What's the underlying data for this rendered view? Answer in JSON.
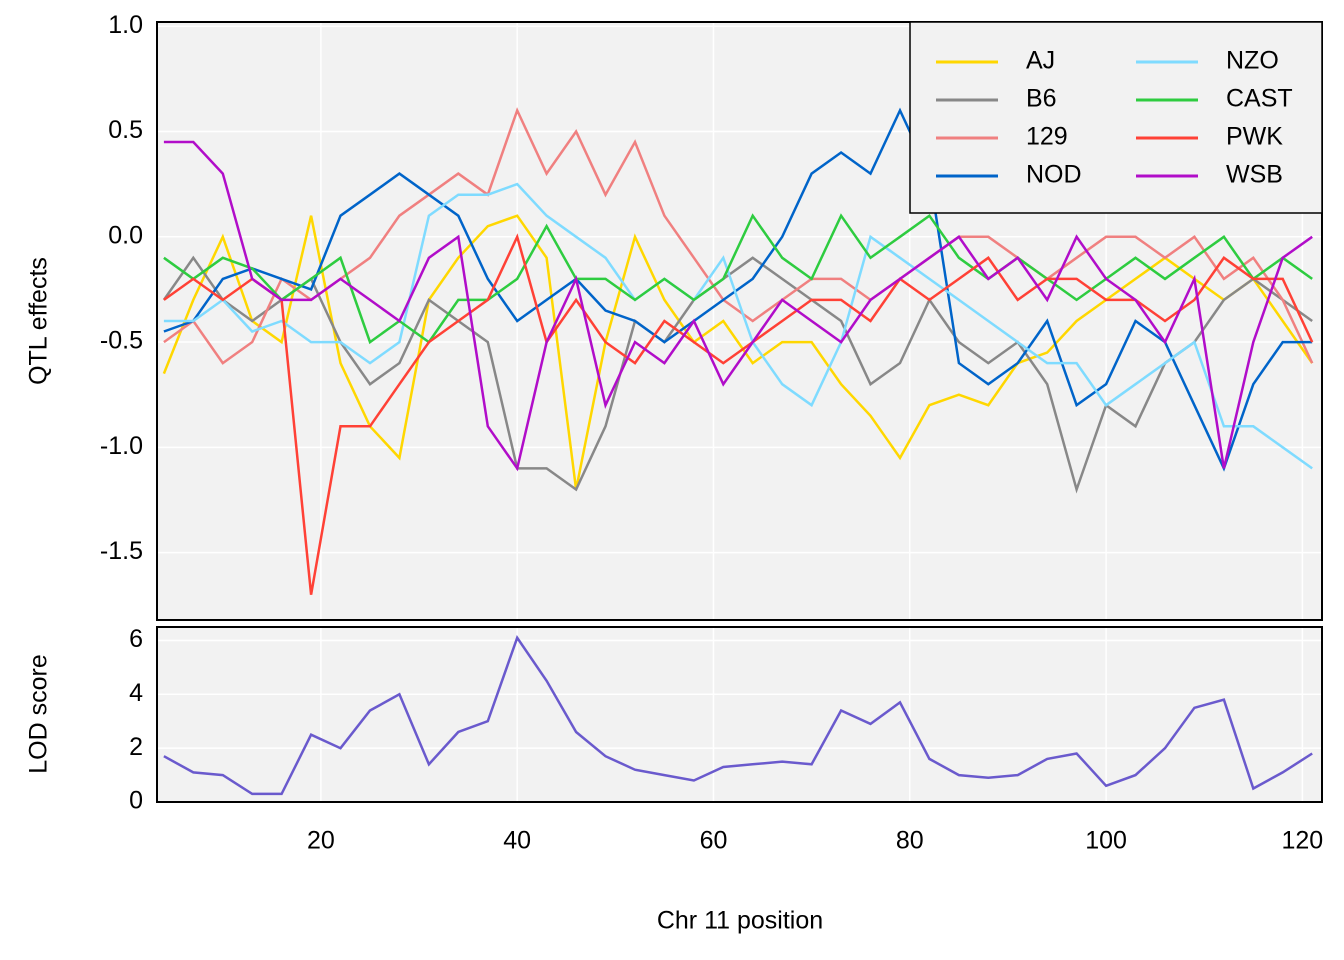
{
  "chart_data": [
    {
      "type": "line",
      "ylabel": "QTL effects",
      "x": [
        4,
        7,
        10,
        13,
        16,
        19,
        22,
        25,
        28,
        31,
        34,
        37,
        40,
        43,
        46,
        49,
        52,
        55,
        58,
        61,
        64,
        67,
        70,
        73,
        76,
        79,
        82,
        85,
        88,
        91,
        94,
        97,
        100,
        103,
        106,
        109,
        112,
        115,
        118,
        121
      ],
      "xlim": [
        3.3,
        122
      ],
      "ylim": [
        -1.82,
        1.02
      ],
      "yticks": [
        -1.5,
        {
          "value": -1,
          "label": "-1.0"
        },
        -0.5,
        {
          "value": 0,
          "label": "0.0"
        },
        0.5,
        {
          "value": 1,
          "label": "1.0"
        }
      ],
      "grid": true,
      "legend": "top-right",
      "series": [
        {
          "name": "AJ",
          "color": "#FFD700",
          "values": [
            -0.65,
            -0.3,
            0.0,
            -0.4,
            -0.5,
            0.1,
            -0.6,
            -0.9,
            -1.05,
            -0.3,
            -0.1,
            0.05,
            0.1,
            -0.1,
            -1.2,
            -0.5,
            0.0,
            -0.3,
            -0.5,
            -0.4,
            -0.6,
            -0.5,
            -0.5,
            -0.7,
            -0.85,
            -1.05,
            -0.8,
            -0.75,
            -0.8,
            -0.6,
            -0.55,
            -0.4,
            -0.3,
            -0.2,
            -0.1,
            -0.2,
            -0.3,
            -0.2,
            -0.4,
            -0.6
          ]
        },
        {
          "name": "B6",
          "color": "#888888",
          "values": [
            -0.3,
            -0.1,
            -0.3,
            -0.4,
            -0.3,
            -0.2,
            -0.5,
            -0.7,
            -0.6,
            -0.3,
            -0.4,
            -0.5,
            -1.1,
            -1.1,
            -1.2,
            -0.9,
            -0.4,
            -0.5,
            -0.3,
            -0.2,
            -0.1,
            -0.2,
            -0.3,
            -0.4,
            -0.7,
            -0.6,
            -0.3,
            -0.5,
            -0.6,
            -0.5,
            -0.7,
            -1.2,
            -0.8,
            -0.9,
            -0.6,
            -0.5,
            -0.3,
            -0.2,
            -0.3,
            -0.4
          ]
        },
        {
          "name": "129",
          "color": "#F08080",
          "values": [
            -0.5,
            -0.4,
            -0.6,
            -0.5,
            -0.2,
            -0.3,
            -0.2,
            -0.1,
            0.1,
            0.2,
            0.3,
            0.2,
            0.6,
            0.3,
            0.5,
            0.2,
            0.45,
            0.1,
            -0.1,
            -0.3,
            -0.4,
            -0.3,
            -0.2,
            -0.2,
            -0.3,
            -0.2,
            -0.1,
            0.0,
            0.0,
            -0.1,
            -0.2,
            -0.1,
            0.0,
            0.0,
            -0.1,
            0.0,
            -0.2,
            -0.1,
            -0.3,
            -0.6
          ]
        },
        {
          "name": "NOD",
          "color": "#0064C9",
          "values": [
            -0.45,
            -0.4,
            -0.2,
            -0.15,
            -0.2,
            -0.25,
            0.1,
            0.2,
            0.3,
            0.2,
            0.1,
            -0.2,
            -0.4,
            -0.3,
            -0.2,
            -0.35,
            -0.4,
            -0.5,
            -0.4,
            -0.3,
            -0.2,
            0.0,
            0.3,
            0.4,
            0.3,
            0.6,
            0.3,
            -0.6,
            -0.7,
            -0.6,
            -0.4,
            -0.8,
            -0.7,
            -0.4,
            -0.5,
            -0.8,
            -1.1,
            -0.7,
            -0.5,
            -0.5
          ]
        },
        {
          "name": "NZO",
          "color": "#7FDBFF",
          "values": [
            -0.4,
            -0.4,
            -0.3,
            -0.45,
            -0.4,
            -0.5,
            -0.5,
            -0.6,
            -0.5,
            0.1,
            0.2,
            0.2,
            0.25,
            0.1,
            0.0,
            -0.1,
            -0.3,
            -0.2,
            -0.3,
            -0.1,
            -0.5,
            -0.7,
            -0.8,
            -0.5,
            0.0,
            -0.1,
            -0.2,
            -0.3,
            -0.4,
            -0.5,
            -0.6,
            -0.6,
            -0.8,
            -0.7,
            -0.6,
            -0.5,
            -0.9,
            -0.9,
            -1.0,
            -1.1
          ]
        },
        {
          "name": "CAST",
          "color": "#2ECC40",
          "values": [
            -0.1,
            -0.2,
            -0.1,
            -0.15,
            -0.3,
            -0.2,
            -0.1,
            -0.5,
            -0.4,
            -0.5,
            -0.3,
            -0.3,
            -0.2,
            0.05,
            -0.2,
            -0.2,
            -0.3,
            -0.2,
            -0.3,
            -0.2,
            0.1,
            -0.1,
            -0.2,
            0.1,
            -0.1,
            0.0,
            0.1,
            -0.1,
            -0.2,
            -0.1,
            -0.2,
            -0.3,
            -0.2,
            -0.1,
            -0.2,
            -0.1,
            0.0,
            -0.2,
            -0.1,
            -0.2
          ]
        },
        {
          "name": "PWK",
          "color": "#FF4136",
          "values": [
            -0.3,
            -0.2,
            -0.3,
            -0.2,
            -0.3,
            -1.7,
            -0.9,
            -0.9,
            -0.7,
            -0.5,
            -0.4,
            -0.3,
            0.0,
            -0.5,
            -0.3,
            -0.5,
            -0.6,
            -0.4,
            -0.5,
            -0.6,
            -0.5,
            -0.4,
            -0.3,
            -0.3,
            -0.4,
            -0.2,
            -0.3,
            -0.2,
            -0.1,
            -0.3,
            -0.2,
            -0.2,
            -0.3,
            -0.3,
            -0.4,
            -0.3,
            -0.1,
            -0.2,
            -0.2,
            -0.5
          ]
        },
        {
          "name": "WSB",
          "color": "#B10DC9",
          "values": [
            0.45,
            0.45,
            0.3,
            -0.2,
            -0.3,
            -0.3,
            -0.2,
            -0.3,
            -0.4,
            -0.1,
            0.0,
            -0.9,
            -1.1,
            -0.5,
            -0.2,
            -0.8,
            -0.5,
            -0.6,
            -0.4,
            -0.7,
            -0.5,
            -0.3,
            -0.4,
            -0.5,
            -0.3,
            -0.2,
            -0.1,
            0.0,
            -0.2,
            -0.1,
            -0.3,
            0.0,
            -0.2,
            -0.3,
            -0.5,
            -0.2,
            -1.1,
            -0.5,
            -0.1,
            0.0
          ]
        }
      ]
    },
    {
      "type": "line",
      "ylabel": "LOD score",
      "xlabel": "Chr 11 position",
      "color": "#6A5ACD",
      "x": [
        4,
        7,
        10,
        13,
        16,
        19,
        22,
        25,
        28,
        31,
        34,
        37,
        40,
        43,
        46,
        49,
        52,
        55,
        58,
        61,
        64,
        67,
        70,
        73,
        76,
        79,
        82,
        85,
        88,
        91,
        94,
        97,
        100,
        103,
        106,
        109,
        112,
        115,
        118,
        121
      ],
      "values": [
        1.7,
        1.1,
        1.0,
        0.3,
        0.3,
        2.5,
        2.0,
        3.4,
        4.0,
        1.4,
        2.6,
        3.0,
        6.1,
        4.5,
        2.6,
        1.7,
        1.2,
        1.0,
        0.8,
        1.3,
        1.4,
        1.5,
        1.4,
        3.4,
        2.9,
        3.7,
        1.6,
        1.0,
        0.9,
        1.0,
        1.6,
        1.8,
        0.6,
        1.0,
        2.0,
        3.5,
        3.8,
        0.5,
        1.1,
        1.8
      ],
      "xlim": [
        3.3,
        122
      ],
      "xticks": [
        20,
        40,
        60,
        80,
        100,
        120
      ],
      "ylim": [
        0,
        6.5
      ],
      "yticks": [
        0,
        2,
        4,
        6
      ],
      "grid": true
    }
  ]
}
